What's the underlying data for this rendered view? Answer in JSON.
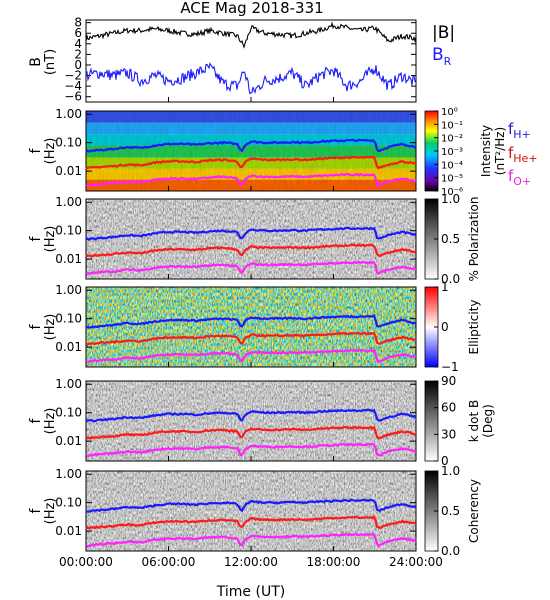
{
  "title": "ACE Mag 2018-331",
  "time_ticks": [
    "00:00:00",
    "06:00:00",
    "12:00:00",
    "18:00:00",
    "24:00:00"
  ],
  "xlabel": "Time (UT)",
  "top_panel": {
    "ylabel": "B",
    "yunit": "(nT)",
    "yticks": [
      "8",
      "6",
      "4",
      "2",
      "0",
      "−2",
      "−4",
      "−6"
    ],
    "legend": {
      "b_total": "|B|",
      "b_r": "B",
      "b_r_sub": "R"
    },
    "colors": {
      "b_total": "#000000",
      "b_r": "#1a1aff"
    }
  },
  "freq_ticks": [
    "1.00",
    "0.10",
    "0.01"
  ],
  "freq_ylabel": "f",
  "freq_yunit": "(Hz)",
  "gyro_labels": [
    {
      "main": "f",
      "sub": "H+",
      "color": "#2222cc"
    },
    {
      "main": "f",
      "sub": "He+",
      "color": "#cc1111"
    },
    {
      "main": "f",
      "sub": "O+",
      "color": "#ee22dd"
    }
  ],
  "line_colors": {
    "h": "#1a1aff",
    "he": "#ff1a1a",
    "o": "#ff22ff"
  },
  "panels": [
    {
      "key": "intensity",
      "cb_title": "Intensity",
      "cb_unit": "(nT²/Hz)",
      "cb_sup": "2",
      "cb_ticks": [
        "10⁰",
        "10⁻¹",
        "10⁻²",
        "10⁻³",
        "10⁻⁴",
        "10⁻⁵",
        "10⁻⁶"
      ]
    },
    {
      "key": "polarization",
      "cb_title": "% Polarization",
      "cb_unit": "",
      "cb_ticks": [
        "1.0",
        "0.5",
        "0.0"
      ]
    },
    {
      "key": "ellipticity",
      "cb_title": "Ellipticity",
      "cb_unit": "",
      "cb_ticks": [
        "1",
        "0",
        "−1"
      ]
    },
    {
      "key": "kdotb",
      "cb_title": "k dot B",
      "cb_unit": "(Deg)",
      "cb_ticks": [
        "90",
        "60",
        "30",
        "0"
      ]
    },
    {
      "key": "coherency",
      "cb_title": "Coherency",
      "cb_unit": "",
      "cb_ticks": [
        "1.0",
        "0.5",
        "0.0"
      ]
    }
  ],
  "chart_data": {
    "type": "line",
    "title": "ACE Mag 2018-331",
    "x_label": "Time (UT)",
    "x_range_hours": [
      0,
      24
    ],
    "top_series": [
      {
        "name": "|B|",
        "ylim": [
          -7,
          8.5
        ],
        "x_hours": [
          0,
          1,
          2,
          3,
          4,
          5,
          6,
          7,
          8,
          9,
          10,
          11,
          11.5,
          12,
          13,
          14,
          15,
          16,
          17,
          18,
          19,
          20,
          21,
          22,
          23,
          24
        ],
        "values": [
          5,
          5.5,
          6,
          6.5,
          6.5,
          6.8,
          6.5,
          6,
          5.8,
          6.5,
          6,
          5.5,
          3.5,
          7,
          6,
          5.8,
          5.5,
          6,
          6.5,
          7.5,
          7,
          6.5,
          7,
          4.5,
          5.5,
          5
        ]
      },
      {
        "name": "B",
        "ylim": [
          -7,
          8.5
        ],
        "x_hours": [
          0,
          1,
          2,
          3,
          4,
          5,
          6,
          7,
          8,
          9,
          10,
          11,
          11.5,
          12,
          13,
          14,
          15,
          16,
          17,
          18,
          19,
          20,
          21,
          22,
          23,
          24
        ],
        "values": [
          -2,
          -1.5,
          -2,
          -1.5,
          -3,
          -2,
          -3,
          -2.5,
          -1.5,
          -0.5,
          -3.5,
          -4,
          -1,
          -5.5,
          -3,
          -2.5,
          -1.5,
          -4,
          -2,
          -1,
          -4,
          -3,
          -0.5,
          -4,
          -2,
          -3.5
        ]
      }
    ],
    "spectral_lines": [
      {
        "name": "f",
        "sub": "H+",
        "x_hours": [
          0,
          1,
          2,
          3,
          4,
          5,
          6,
          7,
          8,
          9,
          10,
          11,
          11.3,
          11.6,
          12,
          13,
          14,
          15,
          16,
          17,
          18,
          19,
          20,
          21,
          21.2,
          22,
          23,
          24
        ],
        "values_hz": [
          0.05,
          0.055,
          0.06,
          0.07,
          0.065,
          0.08,
          0.09,
          0.09,
          0.085,
          0.095,
          0.1,
          0.09,
          0.05,
          0.085,
          0.11,
          0.1,
          0.1,
          0.105,
          0.1,
          0.11,
          0.115,
          0.12,
          0.12,
          0.12,
          0.05,
          0.07,
          0.09,
          0.07
        ]
      },
      {
        "name": "f",
        "sub": "He+",
        "x_hours": [
          0,
          1,
          2,
          3,
          4,
          5,
          6,
          7,
          8,
          9,
          10,
          11,
          11.3,
          11.6,
          12,
          13,
          14,
          15,
          16,
          17,
          18,
          19,
          20,
          21,
          21.2,
          22,
          23,
          24
        ],
        "values_hz": [
          0.0125,
          0.014,
          0.015,
          0.017,
          0.016,
          0.02,
          0.022,
          0.022,
          0.021,
          0.024,
          0.025,
          0.022,
          0.0125,
          0.021,
          0.027,
          0.025,
          0.025,
          0.026,
          0.025,
          0.027,
          0.029,
          0.03,
          0.03,
          0.03,
          0.0125,
          0.017,
          0.022,
          0.018
        ]
      },
      {
        "name": "f",
        "sub": "O+",
        "x_hours": [
          0,
          1,
          2,
          3,
          4,
          5,
          6,
          7,
          8,
          9,
          10,
          11,
          11.3,
          11.6,
          12,
          13,
          14,
          15,
          16,
          17,
          18,
          19,
          20,
          21,
          21.2,
          22,
          23,
          24
        ],
        "values_hz": [
          0.003,
          0.0035,
          0.0037,
          0.0043,
          0.004,
          0.005,
          0.0055,
          0.0055,
          0.0053,
          0.006,
          0.0063,
          0.0055,
          0.003,
          0.0053,
          0.0068,
          0.0063,
          0.0063,
          0.0065,
          0.0063,
          0.0068,
          0.0072,
          0.0075,
          0.0075,
          0.0075,
          0.003,
          0.0043,
          0.0055,
          0.0045
        ]
      }
    ],
    "freq_ylim_hz": [
      0.002,
      1.3
    ],
    "y_scale": "log"
  }
}
